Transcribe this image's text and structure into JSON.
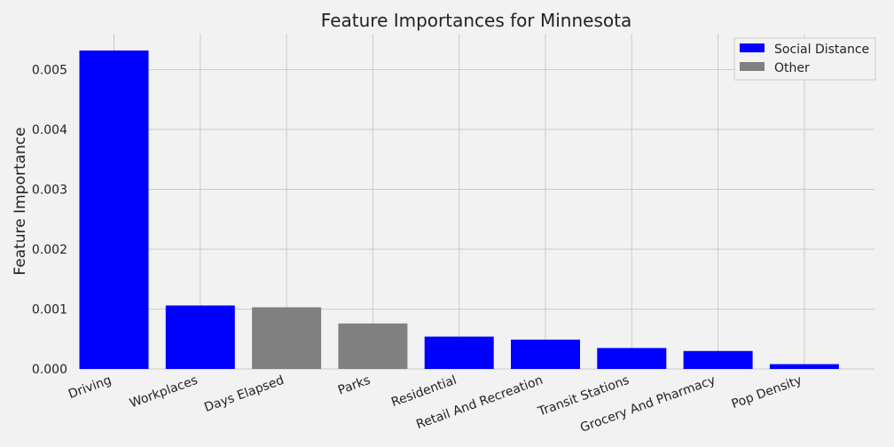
{
  "chart_data": {
    "type": "bar",
    "title": "Feature Importances for Minnesota",
    "xlabel": "",
    "ylabel": "Feature Importance",
    "ylim": [
      0,
      0.0056
    ],
    "yticks": [
      0.0,
      0.001,
      0.002,
      0.003,
      0.004,
      0.005
    ],
    "ytick_labels": [
      "0.000",
      "0.001",
      "0.002",
      "0.003",
      "0.004",
      "0.005"
    ],
    "categories": [
      "Driving",
      "Workplaces",
      "Days Elapsed",
      "Parks",
      "Residential",
      "Retail And Recreation",
      "Transit Stations",
      "Grocery And Pharmacy",
      "Pop Density"
    ],
    "values": [
      0.00532,
      0.00106,
      0.00103,
      0.00076,
      0.00054,
      0.00049,
      0.00035,
      0.0003,
      8e-05
    ],
    "groups": [
      "Social Distance",
      "Social Distance",
      "Other",
      "Other",
      "Social Distance",
      "Social Distance",
      "Social Distance",
      "Social Distance",
      "Social Distance"
    ],
    "legend": {
      "placement": "top-right",
      "entries": [
        {
          "label": "Social Distance",
          "color": "#0000ff"
        },
        {
          "label": "Other",
          "color": "#808080"
        }
      ]
    },
    "grid": true,
    "background_color": "#f2f2f2",
    "grid_color": "#cbcbcb"
  }
}
